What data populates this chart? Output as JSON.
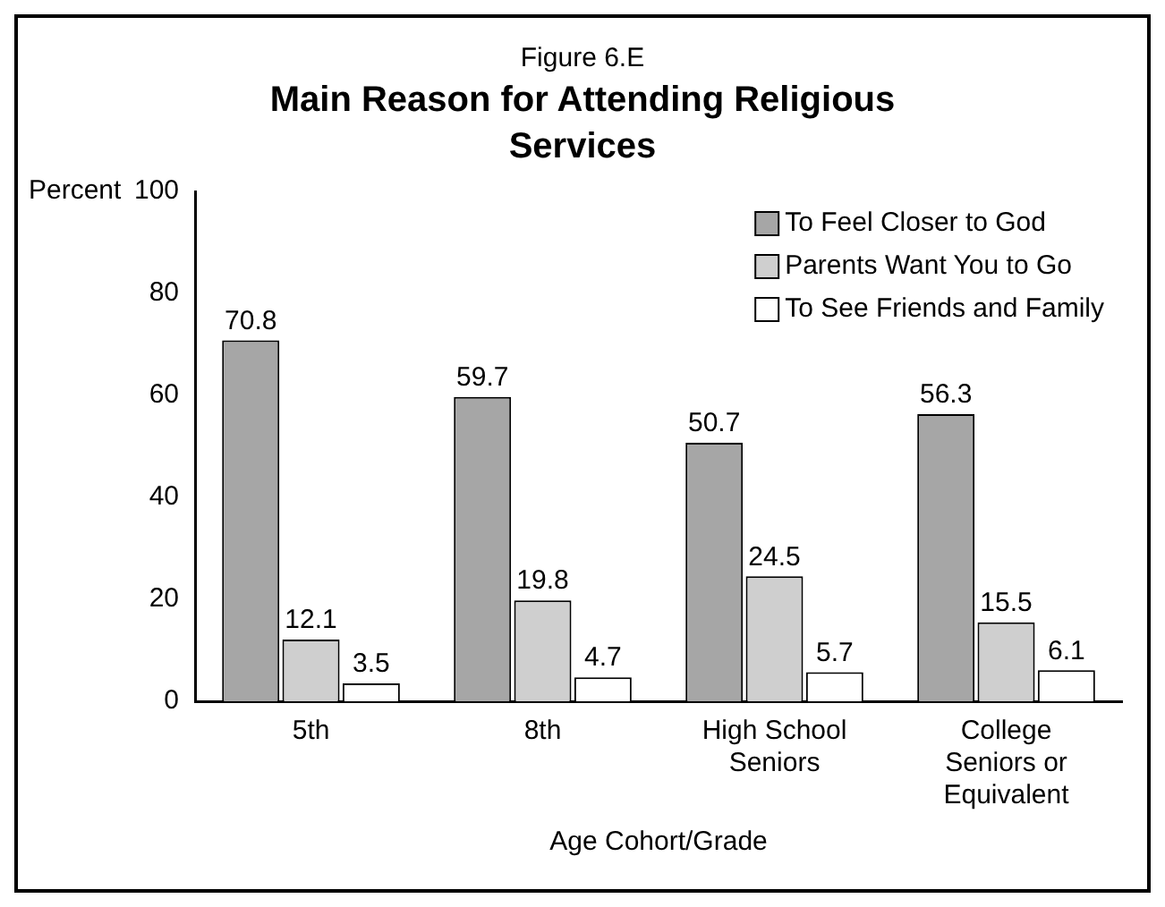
{
  "chart_data": {
    "type": "bar",
    "subtitle": "Figure 6.E",
    "title": "Main Reason for Attending Religious Services",
    "xlabel": "Age Cohort/Grade",
    "ylabel": "Percent",
    "categories": [
      "5th",
      "8th",
      "High School Seniors",
      "College Seniors or Equivalent"
    ],
    "series": [
      {
        "name": "To Feel Closer to God",
        "color": "#a6a6a6",
        "values": [
          70.8,
          59.7,
          50.7,
          56.3
        ]
      },
      {
        "name": "Parents Want You to Go",
        "color": "#cfcfcf",
        "values": [
          12.1,
          19.8,
          24.5,
          15.5
        ]
      },
      {
        "name": "To See Friends and Family",
        "color": "#ffffff",
        "values": [
          3.5,
          4.7,
          5.7,
          6.1
        ]
      }
    ],
    "ylim": [
      0,
      100
    ],
    "yticks": [
      0,
      20,
      40,
      60,
      80,
      100
    ],
    "grid": false,
    "legend": "top right",
    "data_labels": true
  }
}
